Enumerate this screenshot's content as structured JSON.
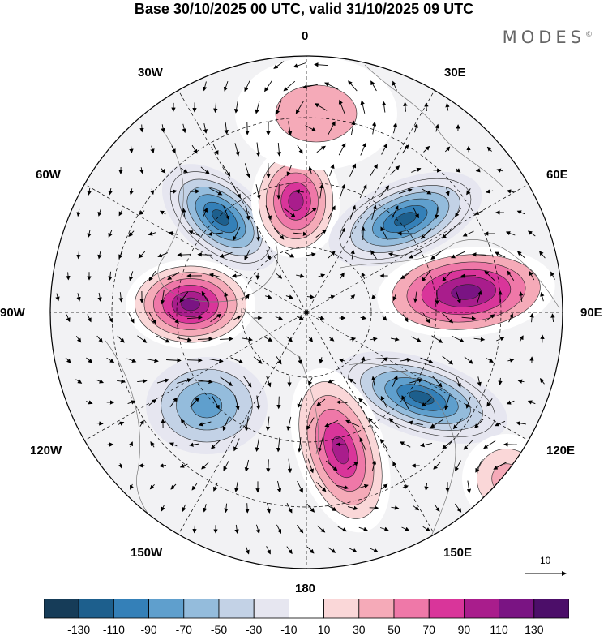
{
  "title": "Base 30/10/2025 00 UTC, valid 31/10/2025 09 UTC",
  "brand": "MODES",
  "brand_mark": "©",
  "longitude_labels": {
    "n": "0",
    "ne": "30E",
    "ene": "60E",
    "e": "90E",
    "ese": "120E",
    "se": "150E",
    "s": "180",
    "sw": "150W",
    "wsw": "120W",
    "w": "90W",
    "wnw": "60W",
    "nw": "30W"
  },
  "vector_reference": "10",
  "colorbar": {
    "labels": [
      "-130",
      "-110",
      "-90",
      "-70",
      "-50",
      "-30",
      "-10",
      "10",
      "30",
      "50",
      "70",
      "90",
      "110",
      "130"
    ],
    "colors": [
      "#163c58",
      "#1d5f8d",
      "#3480b8",
      "#5f9fcd",
      "#94bcdc",
      "#c3d2e6",
      "#e6e6f0",
      "#ffffff",
      "#fad7d8",
      "#f5aab8",
      "#ef78a8",
      "#d9359a",
      "#a91d8c",
      "#7a1483",
      "#4c0e69"
    ]
  },
  "anomalies": [
    {
      "name": "anomaly-low-north-atlantic",
      "value": -120
    },
    {
      "name": "anomaly-high-north-pole-0",
      "value": 100
    },
    {
      "name": "anomaly-low-siberia",
      "value": -120
    },
    {
      "name": "anomaly-high-asia-90e",
      "value": 115
    },
    {
      "name": "anomaly-low-east-asia",
      "value": -120
    },
    {
      "name": "anomaly-high-north-pacific",
      "value": 105
    },
    {
      "name": "anomaly-low-alaska",
      "value": -70
    },
    {
      "name": "anomaly-high-canada-90w",
      "value": 125
    },
    {
      "name": "anomaly-high-europe",
      "value": 35
    },
    {
      "name": "anomaly-high-pacific-120e",
      "value": 45
    }
  ]
}
